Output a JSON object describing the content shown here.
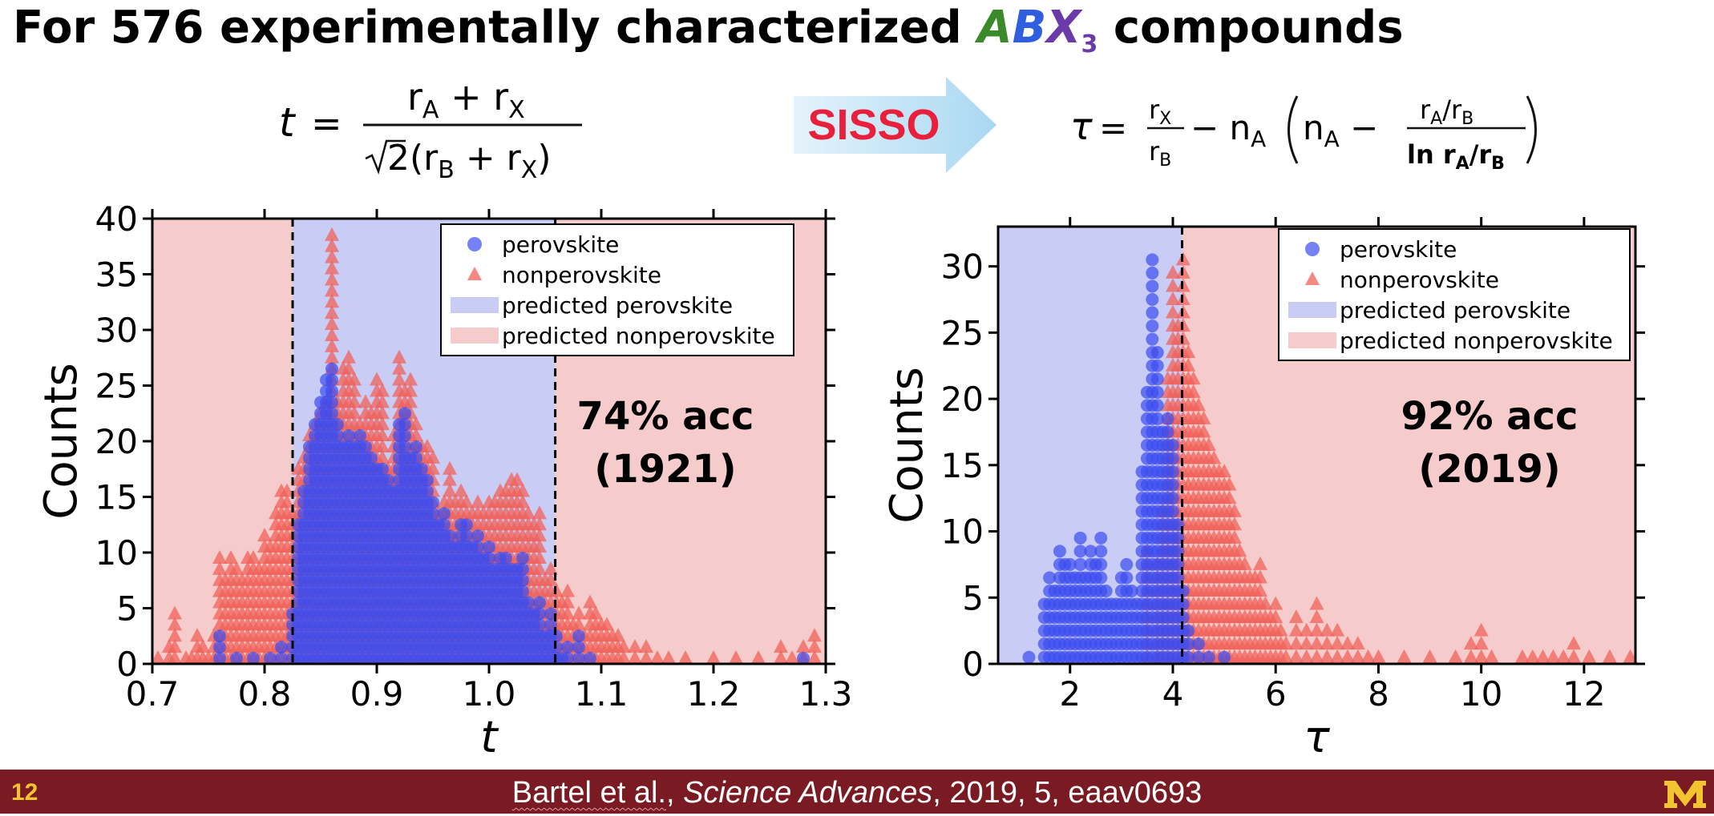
{
  "title": {
    "prefix": "For 576 experimentally characterized ",
    "letter_a": "A",
    "letter_b": "B",
    "letter_x": "X",
    "subscript": "3",
    "suffix": " compounds"
  },
  "formula_left": {
    "lhs": "t =",
    "numerator": "r_A + r_X",
    "denominator": "√2(r_B + r_X)"
  },
  "formula_right": {
    "lhs": "τ =",
    "text": "r_X/r_B − n_A (n_A − (r_A/r_B)/(ln r_A/r_B))"
  },
  "sisso_label": "SISSO",
  "colors": {
    "perovskite": "#3b4cf0",
    "nonperovskite": "#f0625a",
    "predicted_perovskite": "#c9ccf5",
    "predicted_nonperovskite": "#f5cccb",
    "footer": "#7a1a22",
    "sisso_arrow": "#bfe3f7"
  },
  "legend": {
    "perovskite": "perovskite",
    "nonperovskite": "nonperovskite",
    "predicted_perovskite": "predicted perovskite",
    "predicted_nonperovskite": "predicted nonperovskite"
  },
  "footer": {
    "page": "12",
    "author": "Bartel et al.",
    "journal": "Science Advances",
    "rest": ", 2019, 5, eaav0693",
    "logo": "university-m-logo"
  },
  "chart_data": [
    {
      "type": "scatter",
      "ylabel": "Counts",
      "xlabel": "t",
      "annotation": [
        "74% acc",
        "(1921)"
      ],
      "xlim": [
        0.7,
        1.3
      ],
      "ylim": [
        0,
        40
      ],
      "xticks": [
        0.7,
        0.8,
        0.9,
        1.0,
        1.1,
        1.2,
        1.3
      ],
      "xtick_labels": [
        "0.7",
        "0.8",
        "0.9",
        "1.0",
        "1.1",
        "1.2",
        "1.3"
      ],
      "yticks": [
        0,
        5,
        10,
        15,
        20,
        25,
        30,
        35,
        40
      ],
      "thresholds": [
        0.825,
        1.059
      ],
      "perovskite_region": "between thresholds",
      "legend_position": "upper-right",
      "bin_width": 0.005,
      "series": [
        {
          "name": "perovskite",
          "marker": "circle",
          "x": [
            0.76,
            0.775,
            0.79,
            0.805,
            0.815,
            0.825,
            0.83,
            0.835,
            0.84,
            0.845,
            0.85,
            0.855,
            0.86,
            0.865,
            0.87,
            0.875,
            0.88,
            0.885,
            0.89,
            0.895,
            0.9,
            0.905,
            0.91,
            0.915,
            0.92,
            0.925,
            0.93,
            0.935,
            0.94,
            0.945,
            0.95,
            0.955,
            0.96,
            0.965,
            0.97,
            0.975,
            0.98,
            0.985,
            0.99,
            0.995,
            1.0,
            1.005,
            1.01,
            1.015,
            1.02,
            1.025,
            1.03,
            1.035,
            1.04,
            1.045,
            1.05,
            1.055,
            1.06,
            1.065,
            1.07,
            1.08,
            1.09,
            1.28
          ],
          "counts": [
            3,
            1,
            1,
            1,
            2,
            5,
            13,
            16,
            20,
            22,
            24,
            26,
            27,
            22,
            20,
            21,
            20,
            21,
            20,
            19,
            18,
            18,
            17,
            16,
            22,
            23,
            19,
            20,
            18,
            17,
            15,
            13,
            14,
            12,
            11,
            13,
            13,
            11,
            12,
            10,
            11,
            9,
            10,
            10,
            9,
            9,
            10,
            6,
            5,
            6,
            3,
            5,
            3,
            1,
            2,
            3,
            1,
            1
          ]
        },
        {
          "name": "nonperovskite",
          "marker": "triangle",
          "x": [
            0.705,
            0.715,
            0.72,
            0.73,
            0.735,
            0.74,
            0.745,
            0.75,
            0.755,
            0.76,
            0.765,
            0.77,
            0.775,
            0.78,
            0.785,
            0.79,
            0.795,
            0.8,
            0.805,
            0.81,
            0.815,
            0.82,
            0.825,
            0.83,
            0.835,
            0.84,
            0.845,
            0.85,
            0.855,
            0.86,
            0.865,
            0.87,
            0.875,
            0.88,
            0.885,
            0.89,
            0.895,
            0.9,
            0.905,
            0.91,
            0.915,
            0.92,
            0.925,
            0.93,
            0.935,
            0.94,
            0.945,
            0.95,
            0.955,
            0.96,
            0.965,
            0.97,
            0.975,
            0.98,
            0.985,
            0.99,
            0.995,
            1.0,
            1.005,
            1.01,
            1.015,
            1.02,
            1.025,
            1.03,
            1.035,
            1.04,
            1.045,
            1.05,
            1.055,
            1.06,
            1.065,
            1.07,
            1.075,
            1.08,
            1.085,
            1.09,
            1.095,
            1.1,
            1.105,
            1.11,
            1.115,
            1.12,
            1.13,
            1.14,
            1.15,
            1.16,
            1.175,
            1.2,
            1.22,
            1.24,
            1.26,
            1.27,
            1.28,
            1.29
          ],
          "counts": [
            1,
            2,
            5,
            1,
            1,
            3,
            2,
            1,
            3,
            10,
            8,
            10,
            9,
            8,
            10,
            10,
            9,
            12,
            11,
            14,
            16,
            16,
            14,
            18,
            19,
            21,
            22,
            23,
            24,
            39,
            24,
            27,
            28,
            26,
            22,
            24,
            23,
            26,
            25,
            18,
            21,
            28,
            25,
            26,
            22,
            20,
            20,
            19,
            14,
            15,
            18,
            15,
            16,
            15,
            14,
            15,
            14,
            15,
            15,
            16,
            16,
            17,
            17,
            16,
            14,
            13,
            14,
            8,
            9,
            7,
            6,
            7,
            4,
            5,
            3,
            6,
            5,
            4,
            4,
            3,
            3,
            2,
            2,
            2,
            1,
            1,
            1,
            1,
            1,
            1,
            2,
            1,
            2,
            3
          ]
        }
      ]
    },
    {
      "type": "scatter",
      "ylabel": "Counts",
      "xlabel": "τ",
      "annotation": [
        "92% acc",
        "(2019)"
      ],
      "xlim": [
        0.6,
        13.0
      ],
      "ylim": [
        0,
        33
      ],
      "xticks": [
        2,
        4,
        6,
        8,
        10,
        12
      ],
      "xtick_labels": [
        "2",
        "4",
        "6",
        "8",
        "10",
        "12"
      ],
      "yticks": [
        0,
        5,
        10,
        15,
        20,
        25,
        30
      ],
      "thresholds": [
        4.18
      ],
      "perovskite_region": "below threshold",
      "legend_position": "upper-right",
      "bin_width": 0.1,
      "series": [
        {
          "name": "perovskite",
          "marker": "circle",
          "x": [
            1.2,
            1.5,
            1.6,
            1.7,
            1.8,
            1.9,
            2.0,
            2.1,
            2.2,
            2.3,
            2.4,
            2.5,
            2.6,
            2.7,
            2.8,
            2.9,
            3.0,
            3.1,
            3.2,
            3.3,
            3.4,
            3.5,
            3.6,
            3.7,
            3.8,
            3.9,
            4.0,
            4.1,
            4.2,
            4.3,
            4.5,
            4.7,
            5.0
          ],
          "counts": [
            1,
            5,
            7,
            6,
            9,
            8,
            8,
            7,
            10,
            7,
            9,
            8,
            10,
            6,
            5,
            5,
            7,
            8,
            6,
            5,
            15,
            21,
            31,
            24,
            18,
            19,
            17,
            11,
            6,
            3,
            2,
            1,
            1
          ]
        },
        {
          "name": "nonperovskite",
          "marker": "triangle",
          "x": [
            3.5,
            3.7,
            3.8,
            3.9,
            4.0,
            4.1,
            4.2,
            4.3,
            4.4,
            4.5,
            4.6,
            4.7,
            4.8,
            4.9,
            5.0,
            5.1,
            5.2,
            5.3,
            5.4,
            5.5,
            5.6,
            5.7,
            5.8,
            5.9,
            6.0,
            6.1,
            6.2,
            6.4,
            6.6,
            6.8,
            7.0,
            7.2,
            7.4,
            7.6,
            7.8,
            8.0,
            8.5,
            9.0,
            9.5,
            9.8,
            10.0,
            10.2,
            10.8,
            11.0,
            11.2,
            11.4,
            11.6,
            11.8,
            12.1,
            12.5,
            12.9
          ],
          "counts": [
            9,
            8,
            12,
            22,
            30,
            26,
            31,
            24,
            22,
            20,
            19,
            17,
            16,
            15,
            15,
            14,
            12,
            9,
            8,
            7,
            7,
            8,
            5,
            4,
            5,
            3,
            2,
            4,
            3,
            5,
            3,
            3,
            2,
            2,
            1,
            1,
            1,
            1,
            1,
            2,
            3,
            1,
            1,
            1,
            1,
            1,
            1,
            2,
            1,
            1,
            1
          ]
        }
      ]
    }
  ]
}
